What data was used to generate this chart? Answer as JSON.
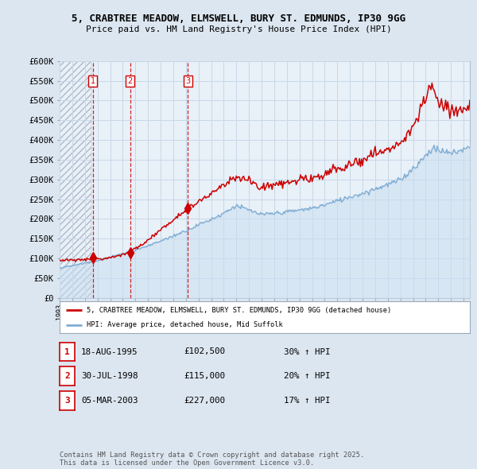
{
  "title_line1": "5, CRABTREE MEADOW, ELMSWELL, BURY ST. EDMUNDS, IP30 9GG",
  "title_line2": "Price paid vs. HM Land Registry's House Price Index (HPI)",
  "ylim": [
    0,
    600000
  ],
  "yticks": [
    0,
    50000,
    100000,
    150000,
    200000,
    250000,
    300000,
    350000,
    400000,
    450000,
    500000,
    550000,
    600000
  ],
  "ytick_labels": [
    "£0",
    "£50K",
    "£100K",
    "£150K",
    "£200K",
    "£250K",
    "£300K",
    "£350K",
    "£400K",
    "£450K",
    "£500K",
    "£550K",
    "£600K"
  ],
  "xlim_start": 1993.0,
  "xlim_end": 2025.5,
  "sale_dates": [
    1995.625,
    1998.58,
    2003.17
  ],
  "sale_prices": [
    102500,
    115000,
    227000
  ],
  "sale_labels": [
    "1",
    "2",
    "3"
  ],
  "sale_date_strs": [
    "18-AUG-1995",
    "30-JUL-1998",
    "05-MAR-2003"
  ],
  "sale_price_strs": [
    "£102,500",
    "£115,000",
    "£227,000"
  ],
  "sale_hpi_strs": [
    "30% ↑ HPI",
    "20% ↑ HPI",
    "17% ↑ HPI"
  ],
  "red_line_color": "#cc0000",
  "blue_line_color": "#7eadd4",
  "legend_label_red": "5, CRABTREE MEADOW, ELMSWELL, BURY ST. EDMUNDS, IP30 9GG (detached house)",
  "legend_label_blue": "HPI: Average price, detached house, Mid Suffolk",
  "footnote": "Contains HM Land Registry data © Crown copyright and database right 2025.\nThis data is licensed under the Open Government Licence v3.0.",
  "bg_color": "#dce6f0",
  "plot_bg_color": "#e8f0f8",
  "hatch_end_year": 1995.5,
  "grid_color": "#c8d8e8"
}
